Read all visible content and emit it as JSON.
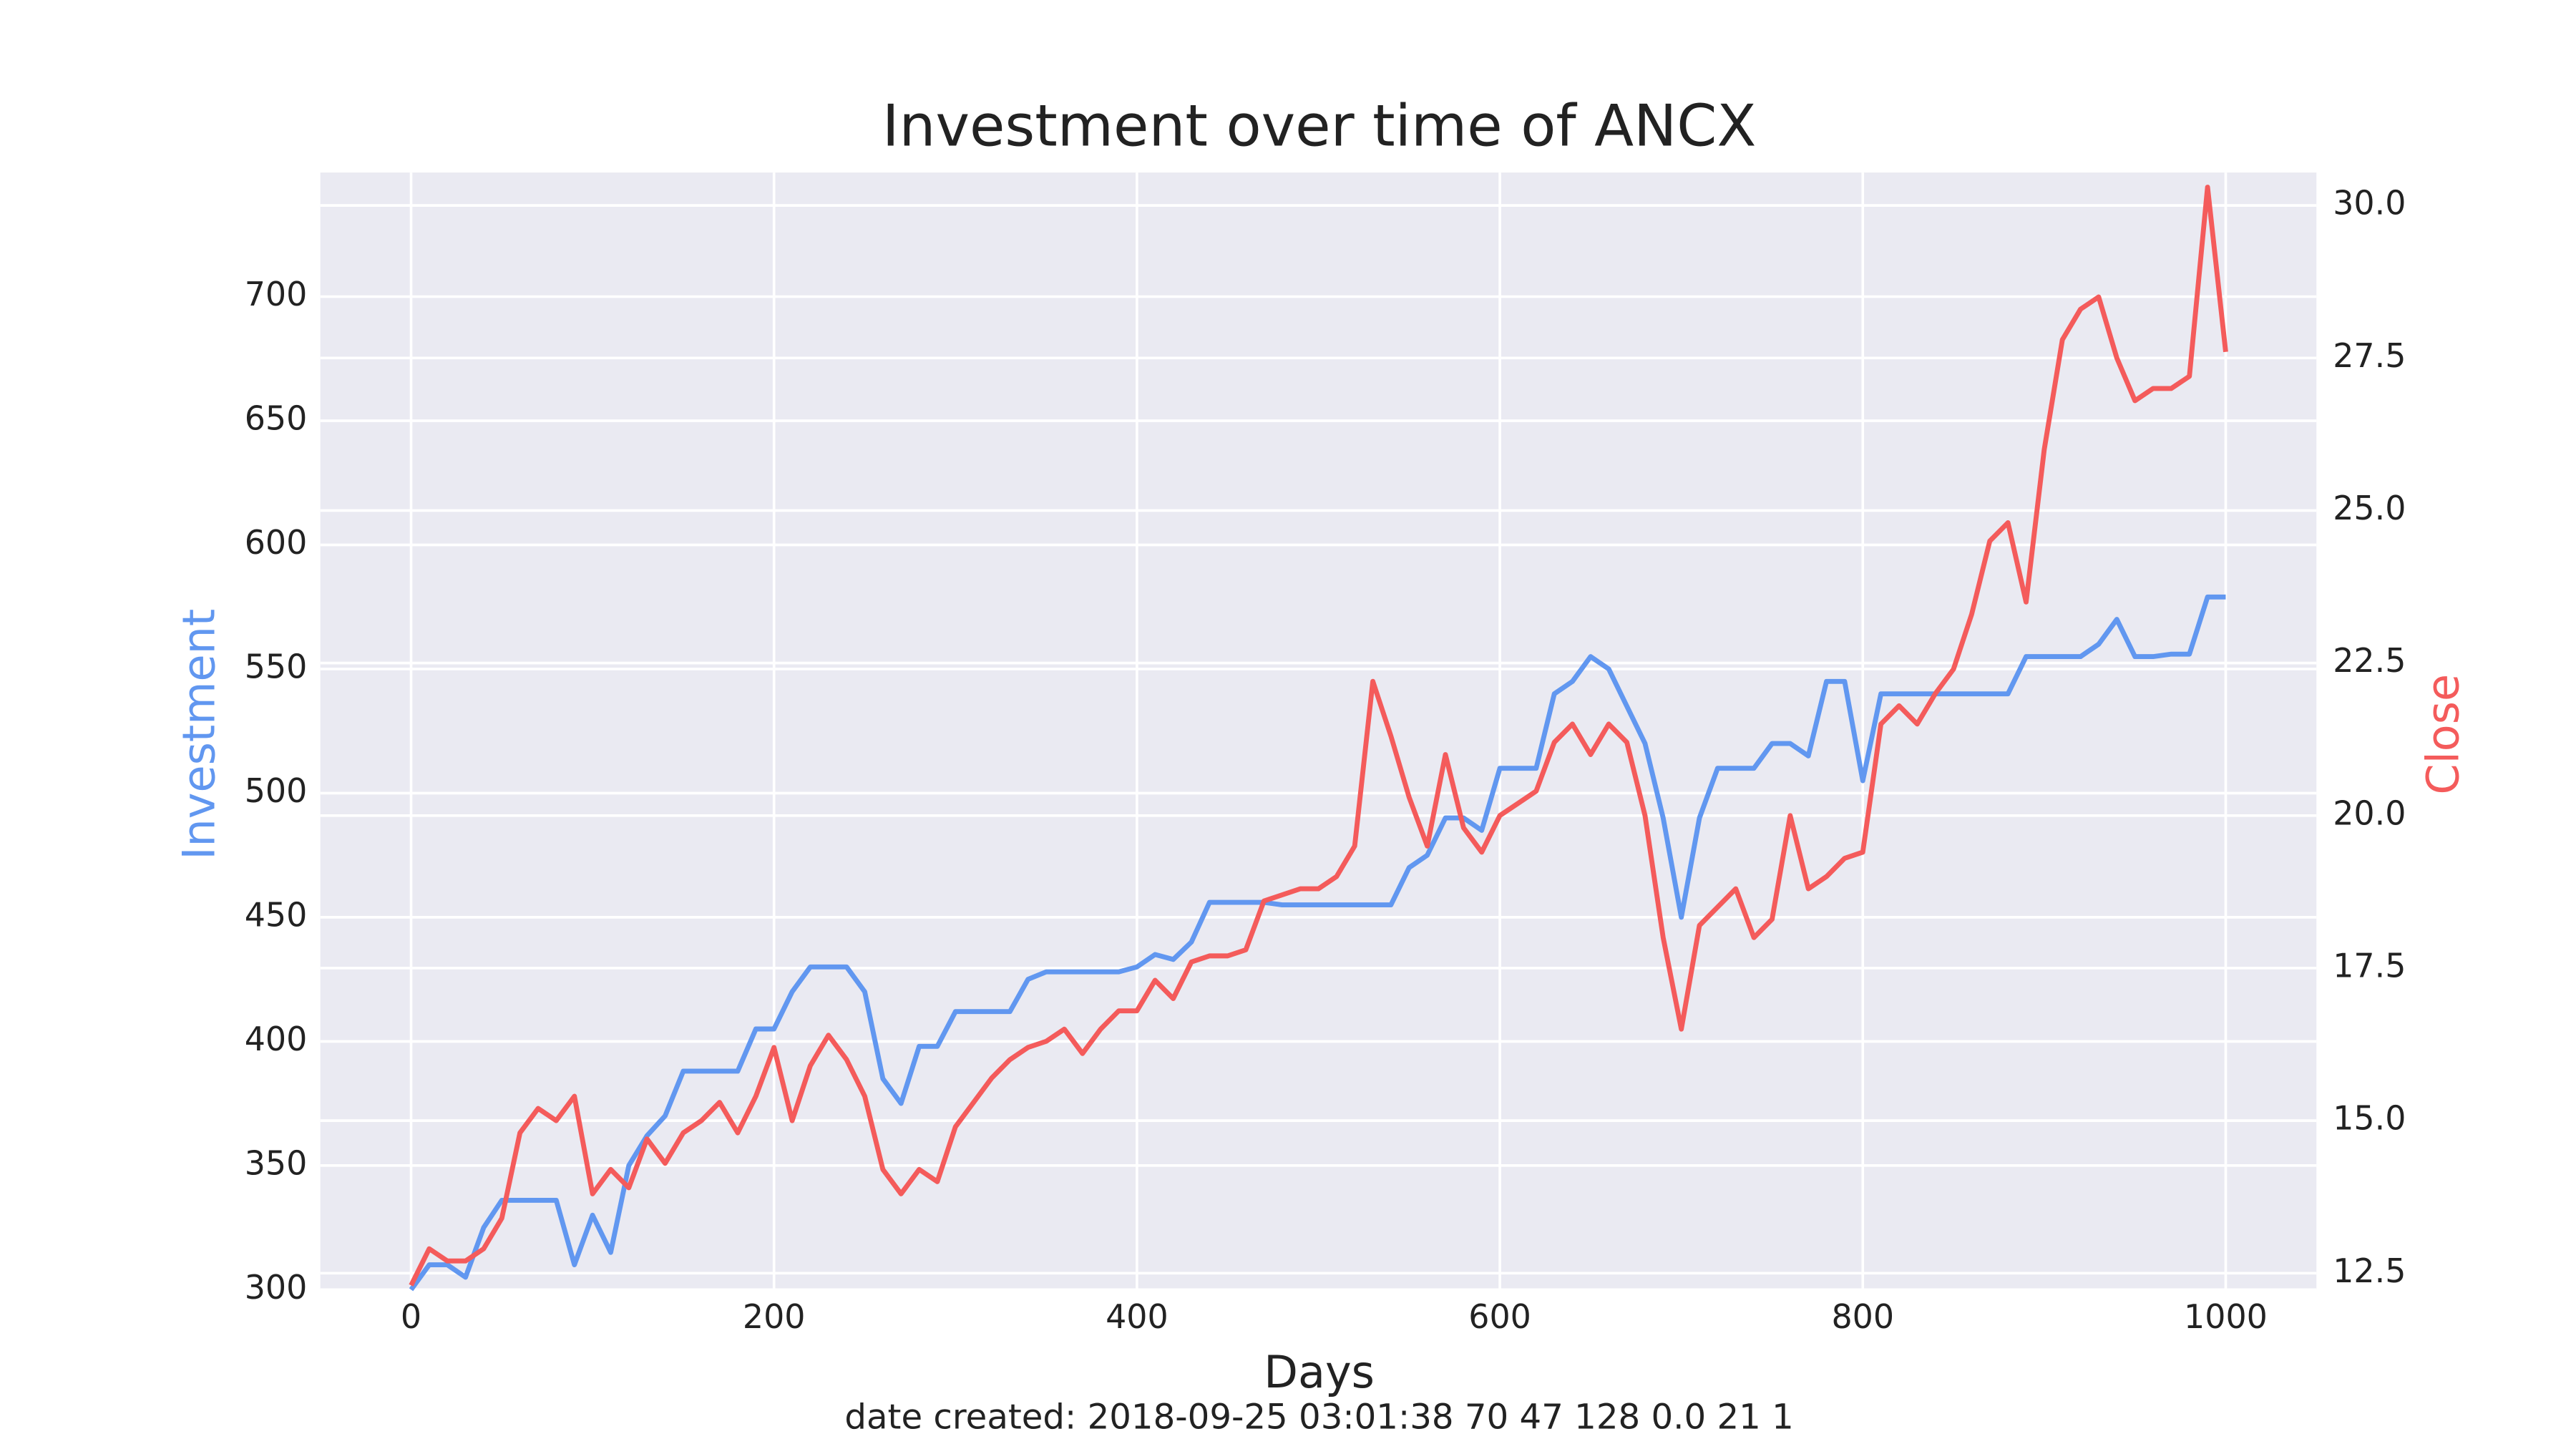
{
  "chart_data": {
    "type": "line",
    "title": "Investment over time of ANCX",
    "xlabel": "Days",
    "footnote": "date created: 2018-09-25 03:01:38 70 47 128 0.0 21 1",
    "x": [
      0,
      10,
      20,
      30,
      40,
      50,
      60,
      70,
      80,
      90,
      100,
      110,
      120,
      130,
      140,
      150,
      160,
      170,
      180,
      190,
      200,
      210,
      220,
      230,
      240,
      250,
      260,
      270,
      280,
      290,
      300,
      310,
      320,
      330,
      340,
      350,
      360,
      370,
      380,
      390,
      400,
      410,
      420,
      430,
      440,
      450,
      460,
      470,
      480,
      490,
      500,
      510,
      520,
      530,
      540,
      550,
      560,
      570,
      580,
      590,
      600,
      610,
      620,
      630,
      640,
      650,
      660,
      670,
      680,
      690,
      700,
      710,
      720,
      730,
      740,
      750,
      760,
      770,
      780,
      790,
      800,
      810,
      820,
      830,
      840,
      850,
      860,
      870,
      880,
      890,
      900,
      910,
      920,
      930,
      940,
      950,
      960,
      970,
      980,
      990,
      1000
    ],
    "series": [
      {
        "name": "Investment",
        "color": "#6197f0",
        "axis": "y",
        "values": [
          300,
          310,
          310,
          305,
          325,
          336,
          336,
          336,
          336,
          310,
          330,
          315,
          350,
          362,
          370,
          388,
          388,
          388,
          388,
          405,
          405,
          420,
          430,
          430,
          430,
          420,
          385,
          375,
          398,
          398,
          412,
          412,
          412,
          412,
          425,
          428,
          428,
          428,
          428,
          428,
          430,
          435,
          433,
          440,
          456,
          456,
          456,
          456,
          455,
          455,
          455,
          455,
          455,
          455,
          455,
          470,
          475,
          490,
          490,
          485,
          510,
          510,
          510,
          540,
          545,
          555,
          550,
          535,
          520,
          490,
          450,
          490,
          510,
          510,
          510,
          520,
          520,
          515,
          545,
          545,
          505,
          540,
          540,
          540,
          540,
          540,
          540,
          540,
          540,
          555,
          555,
          555,
          555,
          560,
          570,
          555,
          555,
          556,
          556,
          579,
          579
        ]
      },
      {
        "name": "Close",
        "color": "#f45b5b",
        "axis": "y2",
        "values": [
          12.3,
          12.9,
          12.7,
          12.7,
          12.9,
          13.4,
          14.8,
          15.2,
          15.0,
          15.4,
          13.8,
          14.2,
          13.9,
          14.7,
          14.3,
          14.8,
          15.0,
          15.3,
          14.8,
          15.4,
          16.2,
          15.0,
          15.9,
          16.4,
          16.0,
          15.4,
          14.2,
          13.8,
          14.2,
          14.0,
          14.9,
          15.3,
          15.7,
          16.0,
          16.2,
          16.3,
          16.5,
          16.1,
          16.5,
          16.8,
          16.8,
          17.3,
          17.0,
          17.6,
          17.7,
          17.7,
          17.8,
          18.6,
          18.7,
          18.8,
          18.8,
          19.0,
          19.5,
          22.2,
          21.3,
          20.3,
          19.5,
          21.0,
          19.8,
          19.4,
          20.0,
          20.2,
          20.4,
          21.2,
          21.5,
          21.0,
          21.5,
          21.2,
          20.0,
          18.0,
          16.5,
          18.2,
          18.5,
          18.8,
          18.0,
          18.3,
          20.0,
          18.8,
          19.0,
          19.3,
          19.4,
          21.5,
          21.8,
          21.5,
          22.0,
          22.4,
          23.3,
          24.5,
          24.8,
          23.5,
          26.0,
          27.8,
          28.3,
          28.5,
          27.5,
          26.8,
          27.0,
          27.0,
          27.2,
          30.3,
          27.6
        ]
      }
    ],
    "xlim": [
      -50,
      1050
    ],
    "xticks": [
      0,
      200,
      400,
      600,
      800,
      1000
    ],
    "ylim": [
      300,
      750
    ],
    "yticks": [
      300,
      350,
      400,
      450,
      500,
      550,
      600,
      650,
      700
    ],
    "y2lim": [
      12.23,
      30.54
    ],
    "y2ticks": [
      12.5,
      {
        "value": 15,
        "label": "15.0"
      },
      17.5,
      {
        "value": 20,
        "label": "20.0"
      },
      22.5,
      {
        "value": 25,
        "label": "25.0"
      },
      27.5,
      {
        "value": 30,
        "label": "30.0"
      }
    ],
    "grid": true
  }
}
